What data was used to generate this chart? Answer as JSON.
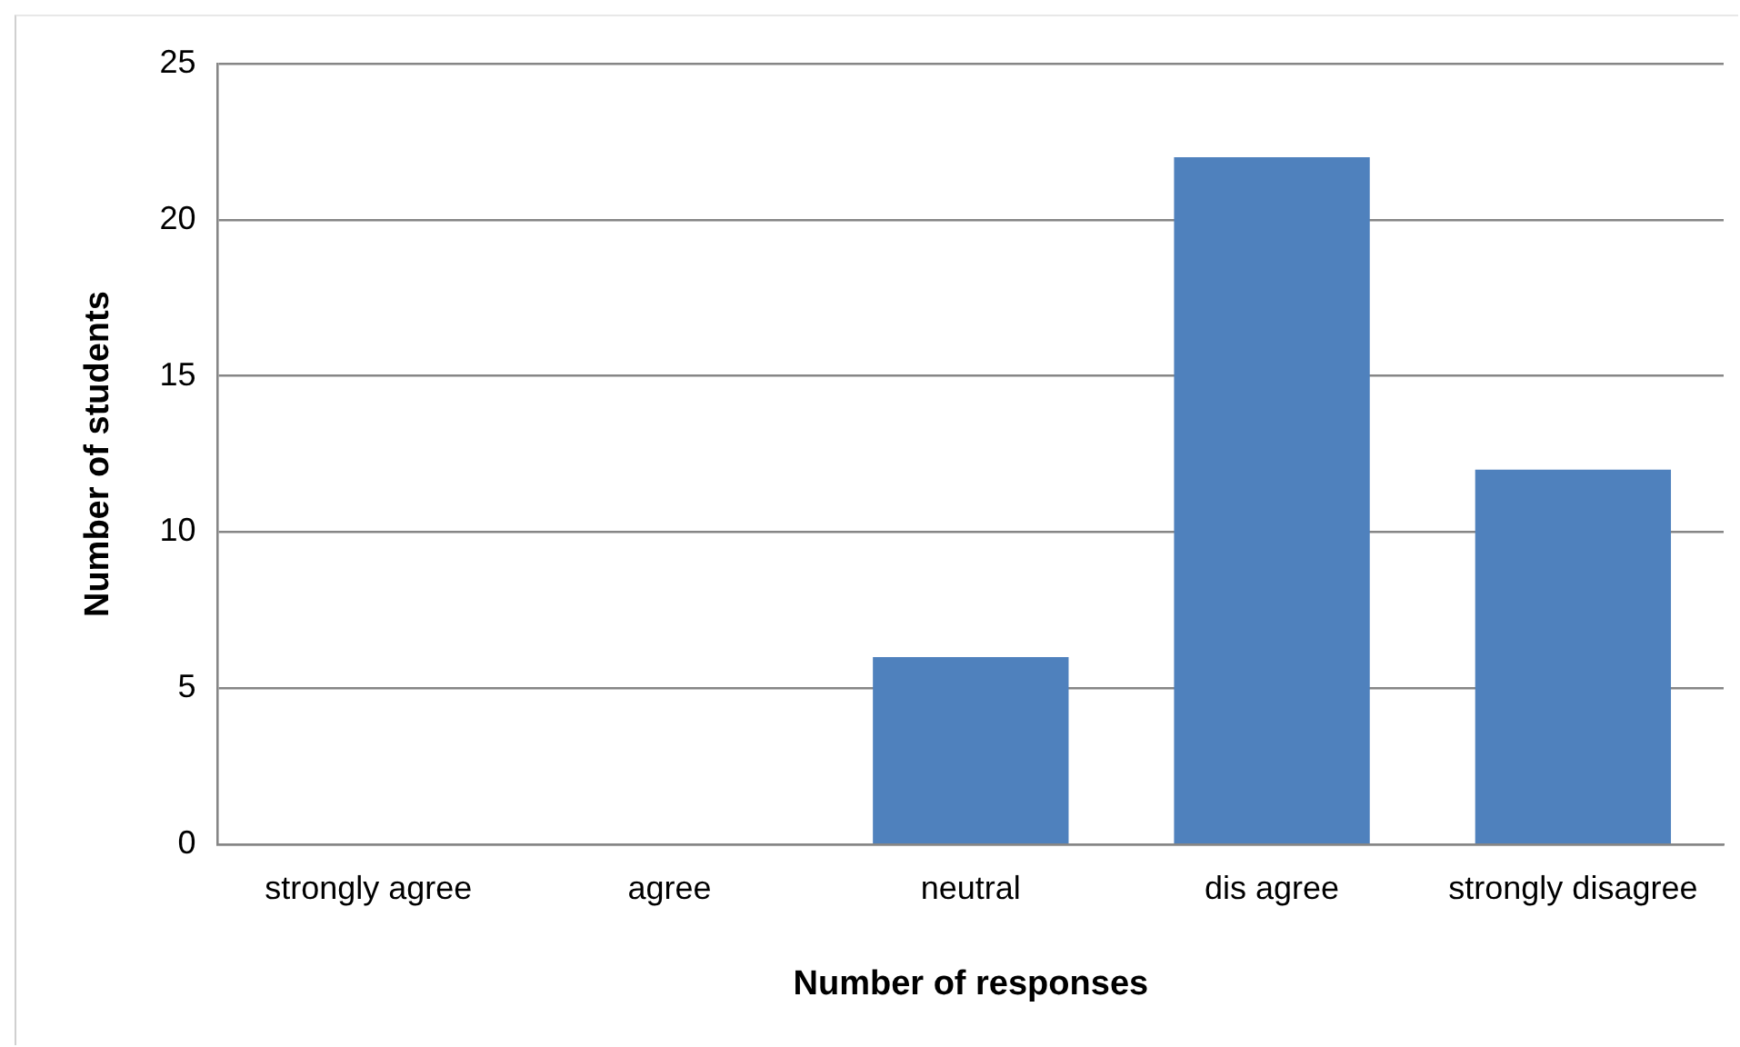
{
  "chart_data": {
    "type": "bar",
    "xlabel": "Number of responses",
    "ylabel": "Number of students",
    "categories": [
      "strongly agree",
      "agree",
      "neutral",
      "dis agree",
      "strongly disagree"
    ],
    "values": [
      0,
      0,
      6,
      22,
      12
    ],
    "color": "#4f81bd",
    "ylim": [
      0,
      25
    ],
    "yticks": [
      0,
      5,
      10,
      15,
      20,
      25
    ],
    "grid": "y",
    "legend": false
  }
}
